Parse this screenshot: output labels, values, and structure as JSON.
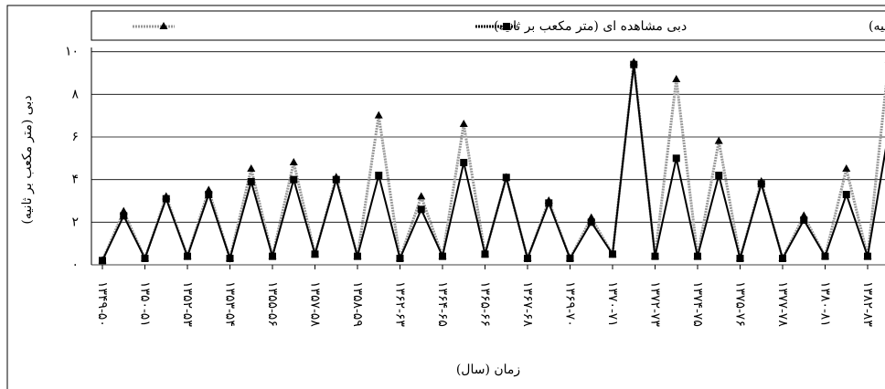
{
  "chart_data": {
    "type": "line",
    "ylabel": "دبی (متر مکعب بر ثانیه)",
    "xlabel": "زمان (سال)",
    "categories": [
      "۱۳۴۹-۵۰",
      null,
      "۱۳۵۰-۵۱",
      null,
      "۱۳۵۲-۵۳",
      null,
      "۱۳۵۳-۵۴",
      null,
      "۱۳۵۵-۵۶",
      null,
      "۱۳۵۷-۵۸",
      null,
      "۱۳۵۸-۵۹",
      null,
      "۱۳۶۲-۶۳",
      null,
      "۱۳۶۴-۶۵",
      null,
      "۱۳۶۵-۶۶",
      null,
      "۱۳۶۷-۶۸",
      null,
      "۱۳۶۹-۷۰",
      null,
      "۱۳۷۰-۷۱",
      null,
      "۱۳۷۲-۷۳",
      null,
      "۱۳۷۴-۷۵",
      null,
      "۱۳۷۵-۷۶",
      null,
      "۱۳۷۷-۷۸",
      null,
      "۱۳۸۰-۸۱",
      null,
      "۱۳۸۲-۸۳",
      null
    ],
    "series": [
      {
        "name": "دبی مشاهده ای (متر مکعب بر ثانیه)",
        "color": "#999999",
        "marker": "triangle",
        "values": [
          0.2,
          2.5,
          0.3,
          3.2,
          0.4,
          3.5,
          0.3,
          4.5,
          0.4,
          4.8,
          0.5,
          4.1,
          0.4,
          7,
          0.3,
          3.2,
          0.4,
          6.6,
          0.5,
          4.1,
          0.3,
          3,
          0.3,
          2.2,
          0.5,
          9.5,
          0.4,
          8.7,
          0.4,
          5.8,
          0.3,
          3.9,
          0.3,
          2.3,
          0.4,
          4.5,
          0.4,
          9.6
        ]
      },
      {
        "name": "دبی محاسباتی با MLP (متر مکعب بر ثانیه)",
        "color": "#000000",
        "marker": "square",
        "values": [
          0.2,
          2.3,
          0.3,
          3.1,
          0.4,
          3.3,
          0.3,
          3.9,
          0.4,
          4.0,
          0.5,
          4.0,
          0.4,
          4.2,
          0.3,
          2.6,
          0.4,
          4.8,
          0.5,
          4.1,
          0.3,
          2.9,
          0.3,
          2.0,
          0.5,
          9.4,
          0.4,
          5.0,
          0.4,
          4.2,
          0.3,
          3.8,
          0.3,
          2.1,
          0.4,
          3.3,
          0.4,
          6.3
        ]
      }
    ],
    "ylim": [
      0,
      10.2
    ],
    "yticks": [
      {
        "value": 0,
        "label": "۰"
      },
      {
        "value": 2,
        "label": "۲"
      },
      {
        "value": 4,
        "label": "۴"
      },
      {
        "value": 6,
        "label": "۶"
      },
      {
        "value": 8,
        "label": "۸"
      },
      {
        "value": 10,
        "label": "۱۰"
      }
    ],
    "grid": true
  }
}
